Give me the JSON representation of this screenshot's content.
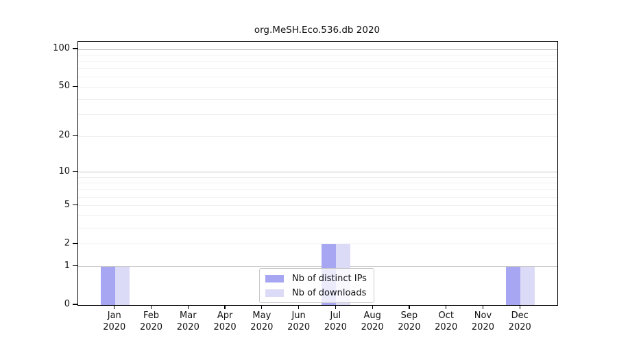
{
  "chart_data": {
    "type": "bar",
    "title": "org.MeSH.Eco.536.db 2020",
    "categories": [
      "Jan",
      "Feb",
      "Mar",
      "Apr",
      "May",
      "Jun",
      "Jul",
      "Aug",
      "Sep",
      "Oct",
      "Nov",
      "Dec"
    ],
    "category_sublabel": "2020",
    "series": [
      {
        "name": "Nb of distinct IPs",
        "color": "#a6a6f2",
        "values": [
          1,
          0,
          0,
          0,
          0,
          0,
          2,
          0,
          0,
          0,
          0,
          1
        ]
      },
      {
        "name": "Nb of downloads",
        "color": "#dbdbf7",
        "values": [
          1,
          0,
          0,
          0,
          0,
          0,
          2,
          0,
          0,
          0,
          0,
          1
        ]
      }
    ],
    "xlabel": "",
    "ylabel": "",
    "y_scale": "log1p",
    "y_ticks": [
      0,
      1,
      2,
      5,
      10,
      20,
      50,
      100
    ],
    "y_minor_gridlines": [
      2,
      3,
      4,
      5,
      6,
      7,
      8,
      9,
      20,
      30,
      40,
      50,
      60,
      70,
      80,
      90
    ],
    "y_major_gridlines": [
      1,
      10,
      100
    ],
    "y_max": 115,
    "grid": "horizontal",
    "legend_position": "bottom-center",
    "colors": {
      "axis": "#000000",
      "grid_minor": "#efefef",
      "grid_major": "#c8c8c8",
      "text": "#111111",
      "background": "#ffffff"
    }
  }
}
